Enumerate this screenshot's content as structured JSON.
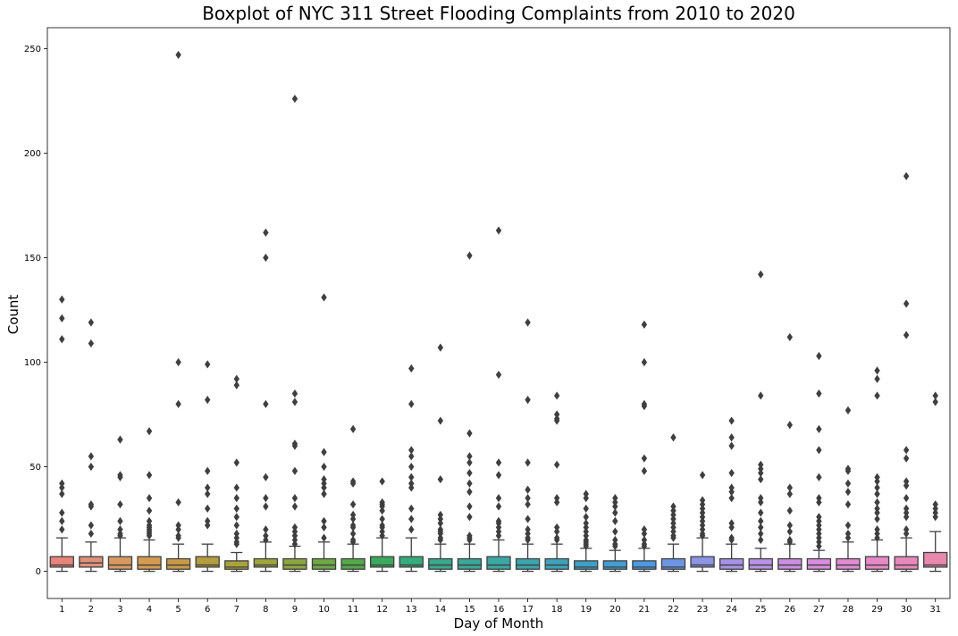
{
  "chart_data": {
    "type": "boxplot",
    "title": "Boxplot of NYC 311 Street Flooding Complaints from 2010 to 2020",
    "xlabel": "Day of Month",
    "ylabel": "Count",
    "ylim": [
      -13,
      260
    ],
    "yticks": [
      0,
      50,
      100,
      150,
      200,
      250
    ],
    "grid": false,
    "categories": [
      "1",
      "2",
      "3",
      "4",
      "5",
      "6",
      "7",
      "8",
      "9",
      "10",
      "11",
      "12",
      "13",
      "14",
      "15",
      "16",
      "17",
      "18",
      "19",
      "20",
      "21",
      "22",
      "23",
      "24",
      "25",
      "26",
      "27",
      "28",
      "29",
      "30",
      "31"
    ],
    "series": [
      {
        "color": "#e8857a",
        "min": 0,
        "q1": 2,
        "median": 3,
        "q3": 7,
        "max": 16,
        "outliers": [
          130,
          121,
          111,
          42,
          40,
          37,
          28,
          24,
          20
        ]
      },
      {
        "color": "#e0907a",
        "min": 0,
        "q1": 2,
        "median": 4,
        "q3": 7,
        "max": 14,
        "outliers": [
          119,
          109,
          55,
          50,
          32,
          31,
          22,
          18
        ]
      },
      {
        "color": "#d69a60",
        "min": 0,
        "q1": 1,
        "median": 3,
        "q3": 7,
        "max": 16,
        "outliers": [
          63,
          46,
          45,
          32,
          24,
          20,
          18,
          17
        ]
      },
      {
        "color": "#d49a50",
        "min": 0,
        "q1": 1,
        "median": 3,
        "q3": 7,
        "max": 15,
        "outliers": [
          67,
          46,
          35,
          29,
          24,
          22,
          21,
          20,
          19,
          18,
          17
        ]
      },
      {
        "color": "#c99a45",
        "min": 0,
        "q1": 1,
        "median": 3,
        "q3": 6,
        "max": 13,
        "outliers": [
          247,
          100,
          80,
          33,
          22,
          20,
          17,
          16
        ]
      },
      {
        "color": "#b59d3e",
        "min": 0,
        "q1": 2,
        "median": 3,
        "q3": 7,
        "max": 13,
        "outliers": [
          99,
          82,
          48,
          40,
          37,
          30,
          24,
          22
        ]
      },
      {
        "color": "#aaa23c",
        "min": 0,
        "q1": 1,
        "median": 2,
        "q3": 5,
        "max": 9,
        "outliers": [
          92,
          89,
          52,
          40,
          35,
          30,
          26,
          22,
          18,
          16,
          14,
          13
        ]
      },
      {
        "color": "#9fa53b",
        "min": 0,
        "q1": 2,
        "median": 3,
        "q3": 6,
        "max": 14,
        "outliers": [
          162,
          150,
          80,
          45,
          35,
          31,
          20,
          17,
          15
        ]
      },
      {
        "color": "#8da63f",
        "min": 0,
        "q1": 1,
        "median": 3,
        "q3": 6,
        "max": 12,
        "outliers": [
          226,
          85,
          81,
          61,
          60,
          48,
          35,
          31,
          21,
          19,
          17,
          15,
          13
        ]
      },
      {
        "color": "#6ea843",
        "min": 0,
        "q1": 1,
        "median": 3,
        "q3": 6,
        "max": 14,
        "outliers": [
          131,
          57,
          50,
          44,
          42,
          40,
          37,
          24,
          21,
          16
        ]
      },
      {
        "color": "#53a94a",
        "min": 0,
        "q1": 1,
        "median": 3,
        "q3": 6,
        "max": 13,
        "outliers": [
          68,
          43,
          42,
          32,
          27,
          25,
          22,
          21,
          18,
          15,
          14
        ]
      },
      {
        "color": "#3aab5c",
        "min": 0,
        "q1": 2,
        "median": 3,
        "q3": 7,
        "max": 16,
        "outliers": [
          43,
          33,
          32,
          31,
          29,
          25,
          22,
          21,
          19,
          17
        ]
      },
      {
        "color": "#36ab7c",
        "min": 0,
        "q1": 2,
        "median": 3,
        "q3": 7,
        "max": 16,
        "outliers": [
          97,
          80,
          58,
          55,
          50,
          45,
          42,
          40,
          30,
          25,
          20
        ]
      },
      {
        "color": "#38a98b",
        "min": 0,
        "q1": 1,
        "median": 3,
        "q3": 6,
        "max": 13,
        "outliers": [
          107,
          72,
          44,
          27,
          25,
          23,
          20,
          19,
          18,
          16,
          15
        ]
      },
      {
        "color": "#39a896",
        "min": 0,
        "q1": 1,
        "median": 3,
        "q3": 6,
        "max": 13,
        "outliers": [
          151,
          66,
          55,
          52,
          47,
          42,
          38,
          31,
          26,
          17,
          16,
          15
        ]
      },
      {
        "color": "#3aa8a3",
        "min": 0,
        "q1": 1,
        "median": 3,
        "q3": 7,
        "max": 15,
        "outliers": [
          163,
          94,
          52,
          46,
          35,
          31,
          24,
          23,
          21,
          19,
          17
        ]
      },
      {
        "color": "#3ba5ad",
        "min": 0,
        "q1": 1,
        "median": 3,
        "q3": 6,
        "max": 13,
        "outliers": [
          119,
          82,
          52,
          39,
          35,
          32,
          25,
          20,
          18,
          16,
          15
        ]
      },
      {
        "color": "#3ca3b9",
        "min": 0,
        "q1": 1,
        "median": 3,
        "q3": 6,
        "max": 13,
        "outliers": [
          84,
          75,
          73,
          72,
          51,
          35,
          33,
          21,
          19,
          16,
          15
        ]
      },
      {
        "color": "#3ea0c6",
        "min": 0,
        "q1": 1,
        "median": 2,
        "q3": 5,
        "max": 11,
        "outliers": [
          37,
          35,
          30,
          26,
          23,
          21,
          19,
          17,
          15,
          14,
          13,
          12
        ]
      },
      {
        "color": "#419ed1",
        "min": 0,
        "q1": 1,
        "median": 2,
        "q3": 5,
        "max": 10,
        "outliers": [
          35,
          33,
          31,
          28,
          24,
          19,
          15,
          13,
          12
        ]
      },
      {
        "color": "#4a9ae0",
        "min": 0,
        "q1": 1,
        "median": 2,
        "q3": 5,
        "max": 11,
        "outliers": [
          118,
          100,
          80,
          79,
          54,
          48,
          20,
          18,
          15,
          13,
          12
        ]
      },
      {
        "color": "#6c95e3",
        "min": 0,
        "q1": 1,
        "median": 2,
        "q3": 6,
        "max": 13,
        "outliers": [
          64,
          31,
          29,
          27,
          25,
          23,
          21,
          19,
          17,
          16
        ]
      },
      {
        "color": "#8e93e6",
        "min": 0,
        "q1": 2,
        "median": 3,
        "q3": 7,
        "max": 16,
        "outliers": [
          46,
          34,
          32,
          30,
          28,
          26,
          24,
          22,
          20,
          18,
          17
        ]
      },
      {
        "color": "#a693e6",
        "min": 0,
        "q1": 1,
        "median": 3,
        "q3": 6,
        "max": 13,
        "outliers": [
          72,
          64,
          60,
          47,
          40,
          38,
          35,
          23,
          21,
          16,
          15
        ]
      },
      {
        "color": "#b892e4",
        "min": 0,
        "q1": 1,
        "median": 3,
        "q3": 6,
        "max": 11,
        "outliers": [
          142,
          84,
          51,
          49,
          47,
          44,
          35,
          33,
          28,
          24,
          21,
          18,
          15
        ]
      },
      {
        "color": "#cb8fe2",
        "min": 0,
        "q1": 1,
        "median": 3,
        "q3": 6,
        "max": 13,
        "outliers": [
          112,
          70,
          40,
          37,
          29,
          22,
          19,
          15,
          14
        ]
      },
      {
        "color": "#da8dde",
        "min": 0,
        "q1": 1,
        "median": 3,
        "q3": 6,
        "max": 10,
        "outliers": [
          103,
          85,
          68,
          58,
          45,
          35,
          33,
          26,
          24,
          22,
          20,
          18,
          16,
          14,
          12
        ]
      },
      {
        "color": "#e38ad5",
        "min": 0,
        "q1": 1,
        "median": 3,
        "q3": 6,
        "max": 14,
        "outliers": [
          77,
          49,
          48,
          42,
          38,
          32,
          22,
          18,
          16
        ]
      },
      {
        "color": "#e789c7",
        "min": 0,
        "q1": 1,
        "median": 3,
        "q3": 7,
        "max": 15,
        "outliers": [
          96,
          92,
          84,
          45,
          43,
          40,
          37,
          33,
          30,
          28,
          25,
          20,
          18,
          16
        ]
      },
      {
        "color": "#e887b9",
        "min": 0,
        "q1": 1,
        "median": 3,
        "q3": 7,
        "max": 16,
        "outliers": [
          189,
          128,
          113,
          58,
          54,
          43,
          41,
          35,
          30,
          28,
          26,
          20,
          18
        ]
      },
      {
        "color": "#e888ac",
        "min": 0,
        "q1": 2,
        "median": 3,
        "q3": 9,
        "max": 19,
        "outliers": [
          84,
          81,
          32,
          30,
          28,
          26
        ]
      }
    ]
  }
}
